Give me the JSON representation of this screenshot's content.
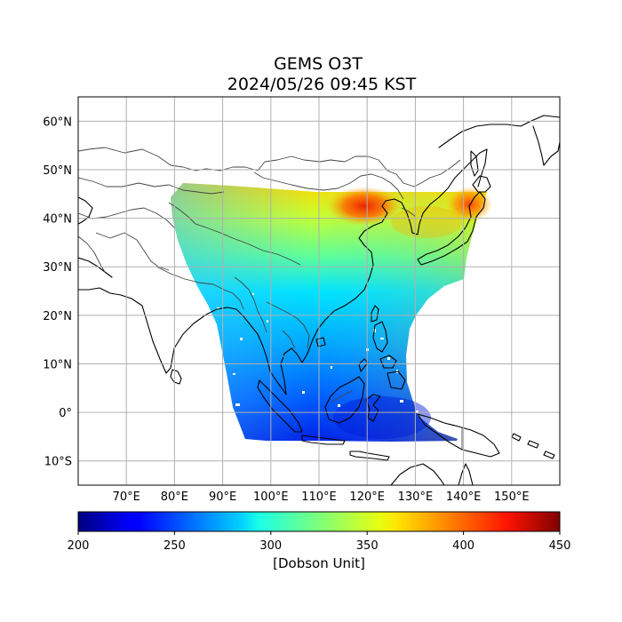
{
  "title": {
    "line1": "GEMS O3T",
    "line2": "2024/05/26 09:45 KST"
  },
  "map": {
    "lon_range": [
      60,
      160
    ],
    "lat_range": [
      -15,
      65
    ],
    "lon_ticks": [
      {
        "value": 70,
        "label": "70°E"
      },
      {
        "value": 80,
        "label": "80°E"
      },
      {
        "value": 90,
        "label": "90°E"
      },
      {
        "value": 100,
        "label": "100°E"
      },
      {
        "value": 110,
        "label": "110°E"
      },
      {
        "value": 120,
        "label": "120°E"
      },
      {
        "value": 130,
        "label": "130°E"
      },
      {
        "value": 140,
        "label": "140°E"
      },
      {
        "value": 150,
        "label": "150°E"
      }
    ],
    "lat_ticks": [
      {
        "value": 60,
        "label": "60°N"
      },
      {
        "value": 50,
        "label": "50°N"
      },
      {
        "value": 40,
        "label": "40°N"
      },
      {
        "value": 30,
        "label": "30°N"
      },
      {
        "value": 20,
        "label": "20°N"
      },
      {
        "value": 10,
        "label": "10°N"
      },
      {
        "value": 0,
        "label": "0°"
      },
      {
        "value": -10,
        "label": "10°S"
      }
    ],
    "gridlines": true
  },
  "colorbar": {
    "min": 200,
    "max": 450,
    "ticks": [
      {
        "value": 200,
        "label": "200"
      },
      {
        "value": 250,
        "label": "250"
      },
      {
        "value": 300,
        "label": "300"
      },
      {
        "value": 350,
        "label": "350"
      },
      {
        "value": 400,
        "label": "400"
      },
      {
        "value": 450,
        "label": "450"
      }
    ],
    "label": "[Dobson Unit]",
    "colormap": "jet"
  }
}
